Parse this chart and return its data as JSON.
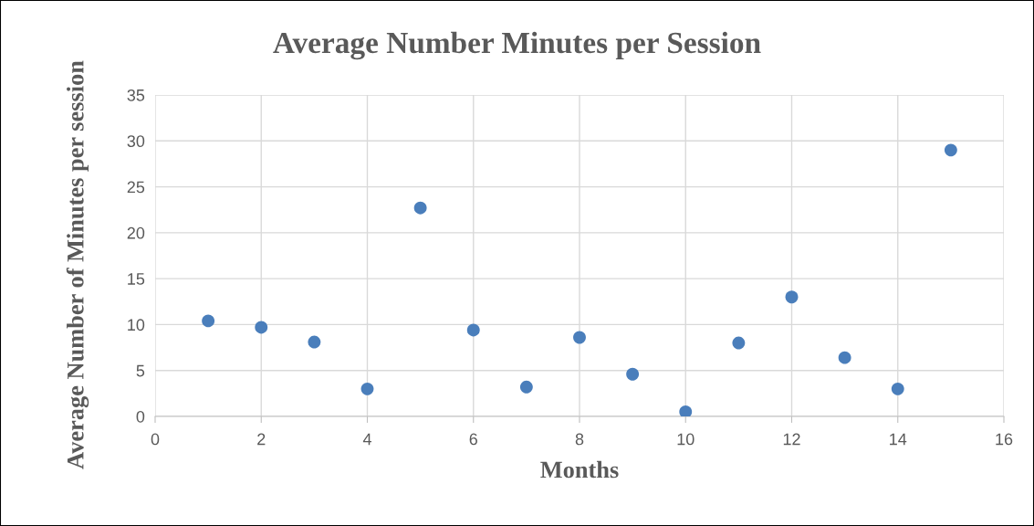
{
  "chart_data": {
    "type": "scatter",
    "title": "Average Number Minutes per Session",
    "xlabel": "Months",
    "ylabel": "Average Number of Minutes per session",
    "x": [
      1,
      2,
      3,
      4,
      5,
      6,
      7,
      8,
      9,
      10,
      11,
      12,
      13,
      14,
      15
    ],
    "values": [
      10.4,
      9.7,
      8.1,
      3.0,
      22.7,
      9.4,
      3.2,
      8.6,
      4.6,
      0.5,
      8.0,
      13.0,
      6.4,
      3.0,
      29.0
    ],
    "color": "#4a7ebb",
    "marker": "circle",
    "xlim": [
      0,
      16
    ],
    "xticks": [
      0,
      2,
      4,
      6,
      8,
      10,
      12,
      14,
      16
    ],
    "ylim": [
      0,
      35
    ],
    "yticks": [
      0,
      5,
      10,
      15,
      20,
      25,
      30,
      35
    ],
    "grid": true
  }
}
